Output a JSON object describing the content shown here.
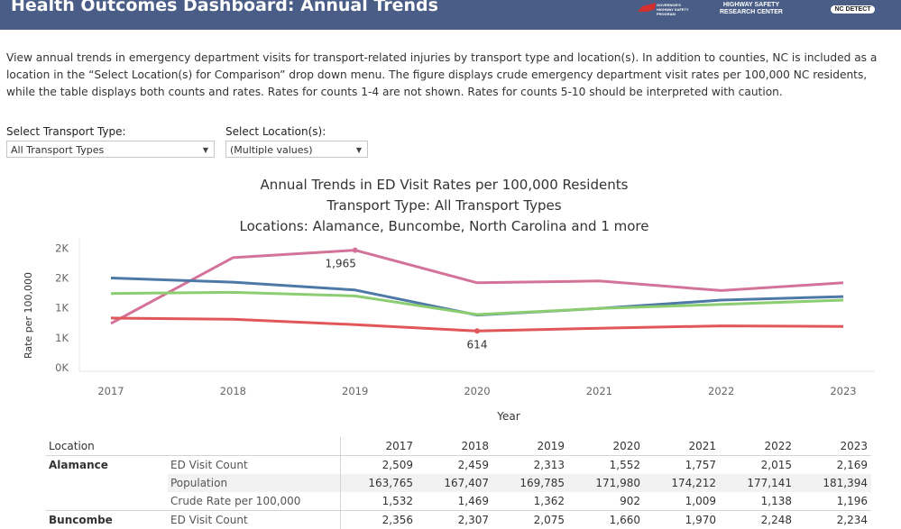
{
  "header": {
    "title": "Health Outcomes Dashboard: Annual Trends",
    "logo_ghsp": "GOVERNOR'S HIGHWAY SAFETY PROGRAM",
    "logo_hsrc_1": "HIGHWAY SAFETY",
    "logo_hsrc_2": "RESEARCH CENTER",
    "logo_ncd": "NC DETECT"
  },
  "description": "View annual trends in emergency department visits for transport-related injuries by transport type and location(s). In addition to counties, NC is included as a location in the “Select Location(s) for Comparison” drop down menu. The figure displays crude emergency department visit rates per 100,000 NC residents, while the table displays both counts and rates. Rates for counts 1-4 are not shown. Rates for counts 5-10 should be interpreted with caution.",
  "filters": {
    "transport_label": "Select Transport Type:",
    "transport_value": "All Transport Types",
    "location_label": "Select Location(s):",
    "location_value": "(Multiple values)"
  },
  "colors": {
    "header_bg": "#4a5d86",
    "pink": "#d4739a",
    "blue": "#4e79a7",
    "green": "#8ccd72",
    "red": "#e15759"
  },
  "chart_data": {
    "type": "line",
    "title_lines": [
      "Annual Trends in ED Visit Rates per 100,000 Residents",
      "Transport Type: All Transport Types",
      "Locations: Alamance, Buncombe, North Carolina and 1 more"
    ],
    "xlabel": "Year",
    "ylabel": "Rate per 100,000",
    "x": [
      "2017",
      "2018",
      "2019",
      "2020",
      "2021",
      "2022",
      "2023"
    ],
    "y_ticks": [
      0,
      500,
      1000,
      1500,
      2000
    ],
    "y_tick_labels": [
      "0K",
      "1K",
      "1K",
      "2K",
      "2K"
    ],
    "ylim": [
      0,
      2050
    ],
    "grid": false,
    "series": [
      {
        "color": "#d4739a",
        "values": [
          740,
          1840,
          1965,
          1420,
          1450,
          1290,
          1420
        ]
      },
      {
        "color": "#4e79a7",
        "values": [
          1500,
          1430,
          1300,
          880,
          990,
          1130,
          1190
        ]
      },
      {
        "color": "#8ccd72",
        "values": [
          1240,
          1260,
          1200,
          890,
          990,
          1060,
          1130
        ]
      },
      {
        "color": "#e15759",
        "values": [
          830,
          810,
          720,
          614,
          660,
          700,
          690
        ]
      }
    ],
    "annotations": [
      {
        "series": 0,
        "index": 2,
        "text": "1,965",
        "position": "below"
      },
      {
        "series": 3,
        "index": 3,
        "text": "614",
        "position": "below"
      }
    ]
  },
  "table": {
    "header_location": "Location",
    "years": [
      "2017",
      "2018",
      "2019",
      "2020",
      "2021",
      "2022",
      "2023"
    ],
    "rows": [
      {
        "location": "Alamance",
        "measure": "ED Visit Count",
        "values": [
          "2,509",
          "2,459",
          "2,313",
          "1,552",
          "1,757",
          "2,015",
          "2,169"
        ]
      },
      {
        "location": "",
        "measure": "Population",
        "values": [
          "163,765",
          "167,407",
          "169,785",
          "171,980",
          "174,212",
          "177,141",
          "181,394"
        ]
      },
      {
        "location": "",
        "measure": "Crude Rate per 100,000",
        "values": [
          "1,532",
          "1,469",
          "1,362",
          "902",
          "1,009",
          "1,138",
          "1,196"
        ]
      },
      {
        "location": "Buncombe",
        "measure": "ED Visit Count",
        "values": [
          "2,356",
          "2,307",
          "2,075",
          "1,660",
          "1,970",
          "2,248",
          "2,234"
        ]
      }
    ]
  }
}
